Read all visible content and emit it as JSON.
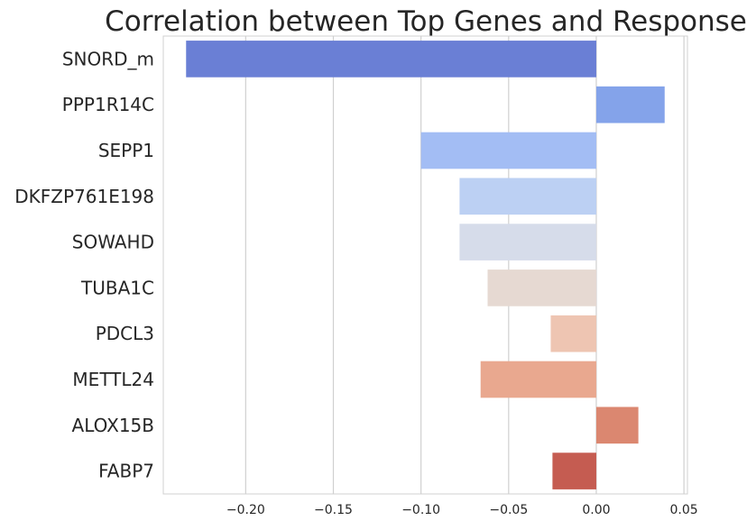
{
  "chart_data": {
    "type": "bar",
    "orientation": "horizontal",
    "title": "Correlation between Top Genes and Response",
    "xlabel": "",
    "ylabel": "",
    "categories": [
      "SNORD_m",
      "PPP1R14C",
      "SEPP1",
      "DKFZP761E198",
      "SOWAHD",
      "TUBA1C",
      "PDCL3",
      "METTL24",
      "ALOX15B",
      "FABP7"
    ],
    "values": [
      -0.234,
      0.039,
      -0.1,
      -0.078,
      -0.078,
      -0.062,
      -0.026,
      -0.066,
      0.024,
      -0.025
    ],
    "colors": [
      "#6a7fd5",
      "#84a3ea",
      "#a3bdf4",
      "#bcd0f3",
      "#d6dcea",
      "#e6d9d2",
      "#eec5b2",
      "#e9a88f",
      "#db8770",
      "#c55c51"
    ],
    "xlim": [
      -0.247,
      0.052
    ],
    "xticks": [
      -0.2,
      -0.15,
      -0.1,
      -0.05,
      0.0,
      0.05
    ],
    "xtick_labels": [
      "−0.20",
      "−0.15",
      "−0.10",
      "−0.05",
      "0.00",
      "0.05"
    ],
    "grid": true,
    "legend": "none"
  }
}
